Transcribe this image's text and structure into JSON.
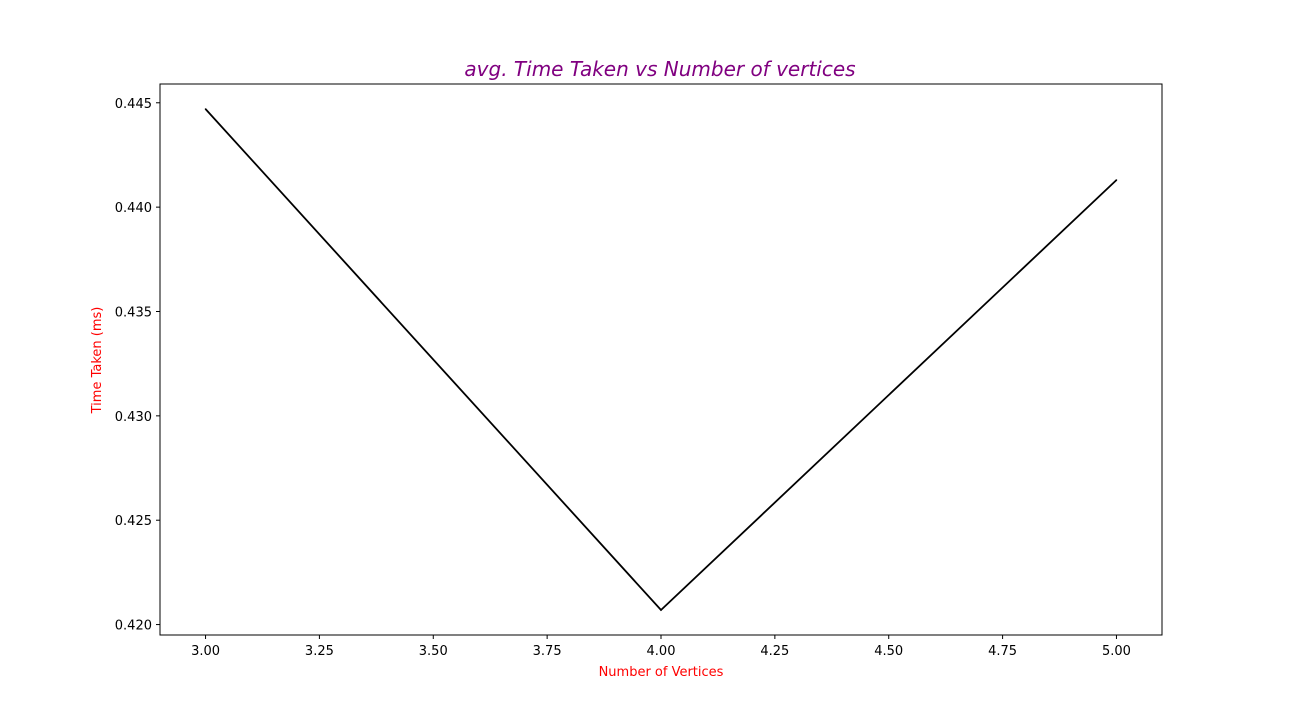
{
  "chart_data": {
    "type": "line",
    "title": "avg. Time Taken vs Number of vertices",
    "xlabel": "Number of Vertices",
    "ylabel": "Time Taken (ms)",
    "xlim": [
      2.9,
      5.1
    ],
    "ylim": [
      0.4195,
      0.4459
    ],
    "x_ticks": [
      3.0,
      3.25,
      3.5,
      3.75,
      4.0,
      4.25,
      4.5,
      4.75,
      5.0
    ],
    "x_tick_labels": [
      "3.00",
      "3.25",
      "3.50",
      "3.75",
      "4.00",
      "4.25",
      "4.50",
      "4.75",
      "5.00"
    ],
    "y_ticks": [
      0.42,
      0.425,
      0.43,
      0.435,
      0.44,
      0.445
    ],
    "y_tick_labels": [
      "0.420",
      "0.425",
      "0.430",
      "0.435",
      "0.440",
      "0.445"
    ],
    "grid": false,
    "series": [
      {
        "x": [
          3,
          4,
          5
        ],
        "values": [
          0.4447,
          0.4207,
          0.4413
        ],
        "color": "#000000"
      }
    ],
    "colors": {
      "title": "#800080",
      "axis_labels": "#ff0000",
      "line": "#000000"
    }
  }
}
